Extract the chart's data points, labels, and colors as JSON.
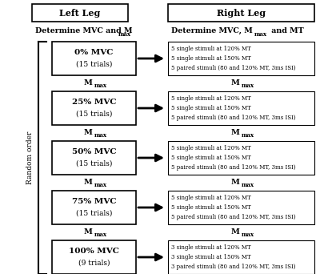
{
  "background_color": "#ffffff",
  "left_header": "Left Leg",
  "right_header": "Right Leg",
  "random_order_label": "Random order",
  "left_boxes": [
    {
      "bold": "0% MVC",
      "sub": "(15 trials)"
    },
    {
      "bold": "25% MVC",
      "sub": "(15 trials)"
    },
    {
      "bold": "50% MVC",
      "sub": "(15 trials)"
    },
    {
      "bold": "75% MVC",
      "sub": "(15 trials)"
    },
    {
      "bold": "100% MVC",
      "sub": "(9 trials)"
    }
  ],
  "right_boxes": [
    [
      "5 single stimuli at 120% MT",
      "5 single stimuli at 150% MT",
      "5 paired stimuli (80 and 120% MT, 3ms ISI)"
    ],
    [
      "5 single stimuli at 120% MT",
      "5 single stimuli at 150% MT",
      "5 paired stimuli (80 and 120% MT, 3ms ISI)"
    ],
    [
      "5 single stimuli at 120% MT",
      "5 single stimuli at 150% MT",
      "5 paired stimuli (80 and 120% MT, 3ms ISI)"
    ],
    [
      "5 single stimuli at 120% MT",
      "5 single stimuli at 150% MT",
      "5 paired stimuli (80 and 120% MT, 3ms ISI)"
    ],
    [
      "3 single stimuli at 120% MT",
      "3 single stimuli at 150% MT",
      "3 paired stimuli (80 and 120% MT, 3ms ISI)"
    ]
  ],
  "figsize": [
    4.0,
    3.42
  ],
  "dpi": 100
}
